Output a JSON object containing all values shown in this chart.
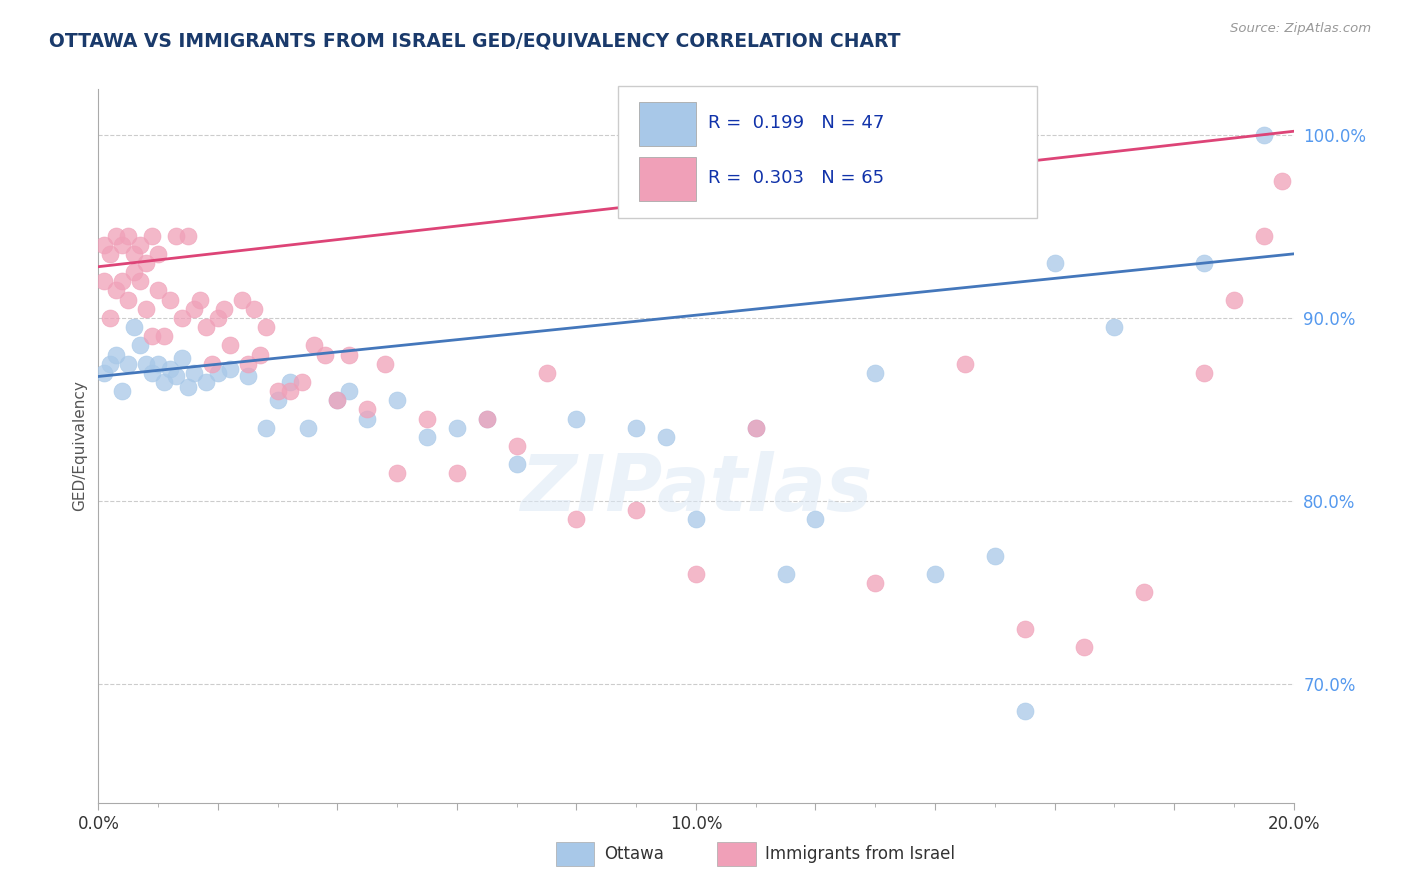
{
  "title": "OTTAWA VS IMMIGRANTS FROM ISRAEL GED/EQUIVALENCY CORRELATION CHART",
  "source_text": "Source: ZipAtlas.com",
  "ylabel": "GED/Equivalency",
  "xlim": [
    0.0,
    0.2
  ],
  "ylim": [
    0.635,
    1.025
  ],
  "ytick_positions": [
    0.7,
    0.8,
    0.9,
    1.0
  ],
  "ytick_labels": [
    "70.0%",
    "80.0%",
    "90.0%",
    "100.0%"
  ],
  "legend_r1": "0.199",
  "legend_n1": "47",
  "legend_r2": "0.303",
  "legend_n2": "65",
  "blue_color": "#a8c8e8",
  "pink_color": "#f0a0b8",
  "trend_blue": "#4477bb",
  "trend_pink": "#dd4477",
  "watermark_text": "ZIPatlas",
  "legend_label1": "Ottawa",
  "legend_label2": "Immigrants from Israel",
  "blue_scatter_x": [
    0.001,
    0.002,
    0.003,
    0.004,
    0.005,
    0.006,
    0.007,
    0.008,
    0.009,
    0.01,
    0.011,
    0.012,
    0.013,
    0.014,
    0.015,
    0.016,
    0.018,
    0.02,
    0.022,
    0.025,
    0.028,
    0.03,
    0.032,
    0.035,
    0.04,
    0.042,
    0.045,
    0.05,
    0.055,
    0.06,
    0.065,
    0.07,
    0.08,
    0.09,
    0.095,
    0.1,
    0.11,
    0.115,
    0.12,
    0.13,
    0.14,
    0.15,
    0.155,
    0.16,
    0.17,
    0.185,
    0.195
  ],
  "blue_scatter_y": [
    0.87,
    0.875,
    0.88,
    0.86,
    0.875,
    0.895,
    0.885,
    0.875,
    0.87,
    0.875,
    0.865,
    0.872,
    0.868,
    0.878,
    0.862,
    0.87,
    0.865,
    0.87,
    0.872,
    0.868,
    0.84,
    0.855,
    0.865,
    0.84,
    0.855,
    0.86,
    0.845,
    0.855,
    0.835,
    0.84,
    0.845,
    0.82,
    0.845,
    0.84,
    0.835,
    0.79,
    0.84,
    0.76,
    0.79,
    0.87,
    0.76,
    0.77,
    0.685,
    0.93,
    0.895,
    0.93,
    1.0
  ],
  "pink_scatter_x": [
    0.001,
    0.001,
    0.002,
    0.002,
    0.003,
    0.003,
    0.004,
    0.004,
    0.005,
    0.005,
    0.006,
    0.006,
    0.007,
    0.007,
    0.008,
    0.008,
    0.009,
    0.009,
    0.01,
    0.01,
    0.011,
    0.012,
    0.013,
    0.014,
    0.015,
    0.016,
    0.017,
    0.018,
    0.019,
    0.02,
    0.021,
    0.022,
    0.024,
    0.025,
    0.026,
    0.027,
    0.028,
    0.03,
    0.032,
    0.034,
    0.036,
    0.038,
    0.04,
    0.042,
    0.045,
    0.048,
    0.05,
    0.055,
    0.06,
    0.065,
    0.07,
    0.075,
    0.08,
    0.09,
    0.1,
    0.11,
    0.13,
    0.145,
    0.155,
    0.165,
    0.175,
    0.185,
    0.19,
    0.195,
    0.198
  ],
  "pink_scatter_y": [
    0.92,
    0.94,
    0.9,
    0.935,
    0.945,
    0.915,
    0.92,
    0.94,
    0.945,
    0.91,
    0.925,
    0.935,
    0.92,
    0.94,
    0.93,
    0.905,
    0.89,
    0.945,
    0.935,
    0.915,
    0.89,
    0.91,
    0.945,
    0.9,
    0.945,
    0.905,
    0.91,
    0.895,
    0.875,
    0.9,
    0.905,
    0.885,
    0.91,
    0.875,
    0.905,
    0.88,
    0.895,
    0.86,
    0.86,
    0.865,
    0.885,
    0.88,
    0.855,
    0.88,
    0.85,
    0.875,
    0.815,
    0.845,
    0.815,
    0.845,
    0.83,
    0.87,
    0.79,
    0.795,
    0.76,
    0.84,
    0.755,
    0.875,
    0.73,
    0.72,
    0.75,
    0.87,
    0.91,
    0.945,
    0.975
  ]
}
